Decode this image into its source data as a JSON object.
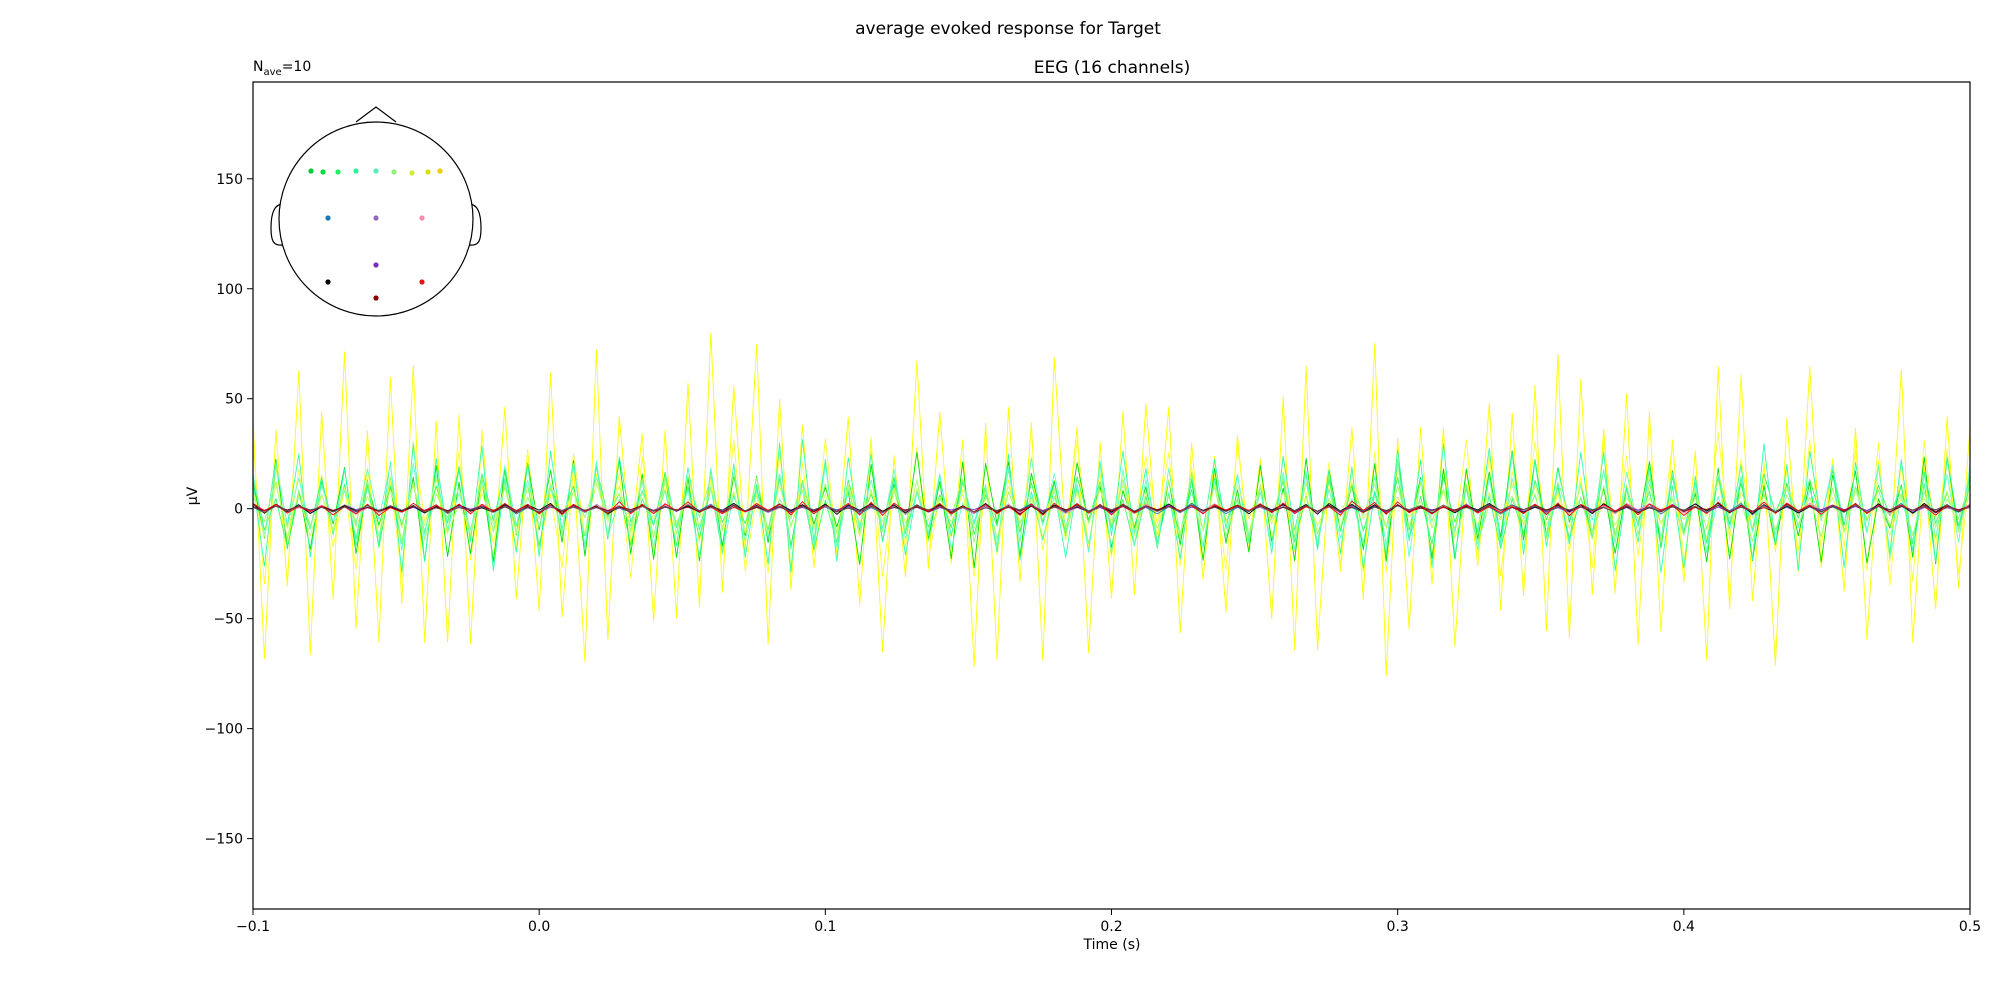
{
  "figure": {
    "suptitle": "average evoked response for Target"
  },
  "chart_data": {
    "type": "line",
    "title": "EEG (16 channels)",
    "nave_label": "=10",
    "nave_prefix": "N",
    "nave_sub": "ave",
    "xlabel": "Time (s)",
    "ylabel": "µV",
    "xlim": [
      -0.1,
      0.5
    ],
    "ylim": [
      -182,
      194
    ],
    "x_ticks": [
      -0.1,
      0.0,
      0.1,
      0.2,
      0.3,
      0.4,
      0.5
    ],
    "x_tick_labels": [
      "−0.1",
      "0.0",
      "0.1",
      "0.2",
      "0.3",
      "0.4",
      "0.5"
    ],
    "y_ticks": [
      150,
      100,
      50,
      0,
      -50,
      -100,
      -150
    ],
    "y_tick_labels": [
      "150",
      "100",
      "50",
      "0",
      "−50",
      "−100",
      "−150"
    ],
    "grid": false,
    "legend": "none",
    "sample_rate_hz": 250,
    "series": [
      {
        "color": "#ffff00",
        "amplitude": 120,
        "seed": 1
      },
      {
        "color": "#ffff33",
        "amplitude": 55,
        "seed": 2
      },
      {
        "color": "#00e000",
        "amplitude": 42,
        "seed": 3
      },
      {
        "color": "#33ff66",
        "amplitude": 30,
        "seed": 4
      },
      {
        "color": "#33ffaa",
        "amplitude": 48,
        "seed": 5
      },
      {
        "color": "#66ffcc",
        "amplitude": 35,
        "seed": 6
      },
      {
        "color": "#99ff66",
        "amplitude": 25,
        "seed": 7
      },
      {
        "color": "#ccff66",
        "amplitude": 20,
        "seed": 8
      },
      {
        "color": "#1f77b4",
        "amplitude": 4,
        "seed": 9
      },
      {
        "color": "#9467bd",
        "amplitude": 3,
        "seed": 10
      },
      {
        "color": "#ff88aa",
        "amplitude": 4,
        "seed": 11
      },
      {
        "color": "#7b2fbe",
        "amplitude": 3,
        "seed": 12
      },
      {
        "color": "#000000",
        "amplitude": 4,
        "seed": 13
      },
      {
        "color": "#8b0000",
        "amplitude": 3,
        "seed": 14
      },
      {
        "color": "#ff0000",
        "amplitude": 5,
        "seed": 15
      },
      {
        "color": "#555555",
        "amplitude": 3,
        "seed": 16
      }
    ],
    "sensors": [
      {
        "color": "#00cc33"
      },
      {
        "color": "#00dd44"
      },
      {
        "color": "#22ee66"
      },
      {
        "color": "#33ee99"
      },
      {
        "color": "#55eebb"
      },
      {
        "color": "#99ee77"
      },
      {
        "color": "#ccee33"
      },
      {
        "color": "#dddd00"
      },
      {
        "color": "#eecc00"
      },
      {
        "color": "#1f77b4"
      },
      {
        "color": "#9467bd"
      },
      {
        "color": "#ff88aa"
      },
      {
        "color": "#7b2fbe"
      },
      {
        "color": "#000000"
      },
      {
        "color": "#ee1111"
      },
      {
        "color": "#8b0000"
      }
    ]
  }
}
